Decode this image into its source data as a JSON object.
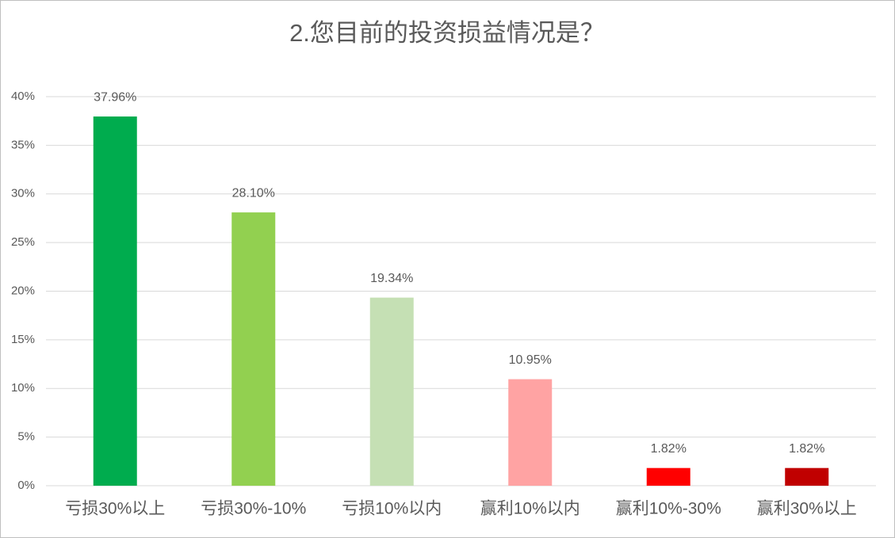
{
  "chart_data": {
    "type": "bar",
    "title": "2.您目前的投资损益情况是？",
    "categories": [
      "亏损30%以上",
      "亏损30%-10%",
      "亏损10%以内",
      "赢利10%以内",
      "赢利10%-30%",
      "赢利30%以上"
    ],
    "values": [
      37.96,
      28.1,
      19.34,
      10.95,
      1.82,
      1.82
    ],
    "value_labels": [
      "37.96%",
      "28.10%",
      "19.34%",
      "10.95%",
      "1.82%",
      "1.82%"
    ],
    "colors": [
      "#00ac4e",
      "#92d050",
      "#c5e0b4",
      "#ffa3a3",
      "#ff0000",
      "#c00000"
    ],
    "ylim": [
      0,
      40
    ],
    "yticks": [
      {
        "value": 0,
        "label": "0%"
      },
      {
        "value": 5,
        "label": "5%"
      },
      {
        "value": 10,
        "label": "10%"
      },
      {
        "value": 15,
        "label": "15%"
      },
      {
        "value": 20,
        "label": "20%"
      },
      {
        "value": 25,
        "label": "25%"
      },
      {
        "value": 30,
        "label": "30%"
      },
      {
        "value": 35,
        "label": "35%"
      },
      {
        "value": 40,
        "label": "40%"
      }
    ],
    "grid": true
  }
}
